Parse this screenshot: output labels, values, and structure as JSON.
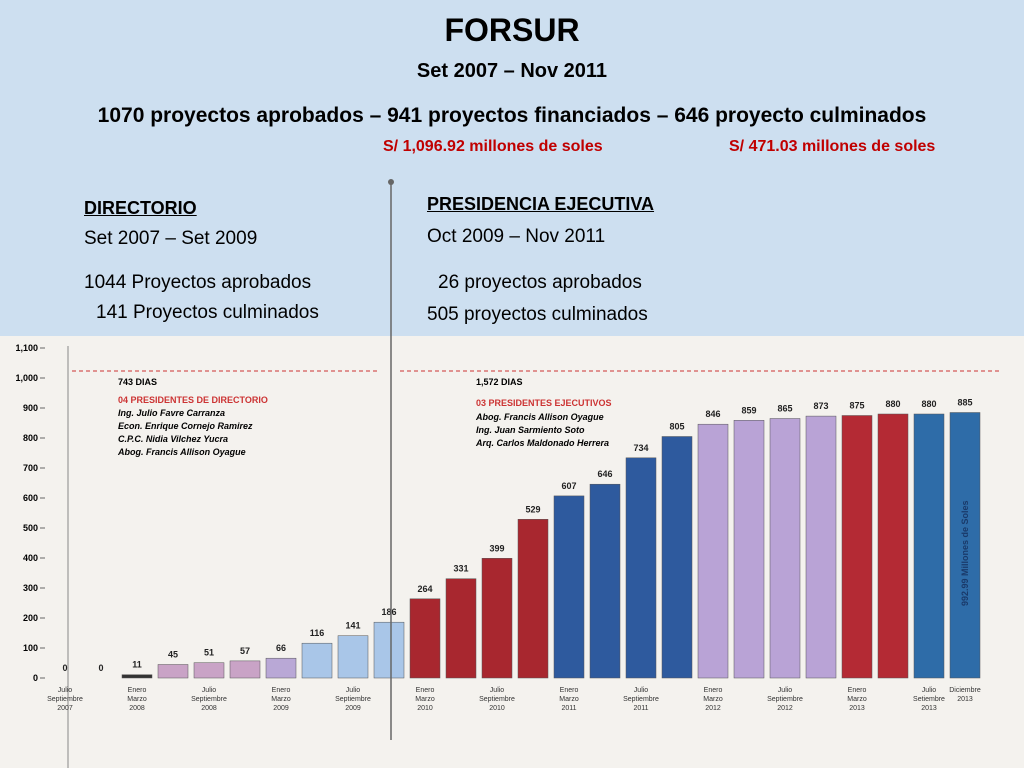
{
  "slide": {
    "title": "FORSUR",
    "period": "Set 2007 – Nov 2011",
    "summary": "1070 proyectos aprobados – 941 proyectos financiados – 646 proyecto culminados",
    "amount1": "S/ 1,096.92 millones de soles",
    "amount2": "S/ 471.03 millones de soles",
    "left": {
      "heading": "DIRECTORIO",
      "period": "Set 2007 – Set 2009",
      "line1": "1044 Proyectos aprobados",
      "line2": "141 Proyectos culminados"
    },
    "right": {
      "heading": "PRESIDENCIA EJECUTIVA",
      "period": "Oct 2009 – Nov 2011",
      "line1": "26 proyectos aprobados",
      "line2": "505 proyectos culminados"
    }
  },
  "chart_data": {
    "type": "bar",
    "categories": [
      "Julio\nSeptiembre\n2007",
      null,
      "Enero\nMarzo\n2008",
      null,
      "Julio\nSeptiembre\n2008",
      null,
      "Enero\nMarzo\n2009",
      null,
      "Julio\nSeptiembre\n2009",
      null,
      "Enero\nMarzo\n2010",
      null,
      "Julio\nSeptiembre\n2010",
      null,
      "Enero\nMarzo\n2011",
      null,
      "Julio\nSeptiembre\n2011",
      null,
      "Enero\nMarzo\n2012",
      null,
      "Julio\nSeptiembre\n2012",
      null,
      "Enero\nMarzo\n2013",
      null,
      "Julio\nSetiembre\n2013",
      "Diciembre\n2013"
    ],
    "values": [
      0,
      0,
      11,
      45,
      51,
      57,
      66,
      116,
      141,
      186,
      264,
      331,
      399,
      529,
      607,
      646,
      734,
      805,
      846,
      859,
      865,
      873,
      875,
      880,
      880,
      885
    ],
    "colors": [
      "#888",
      "#888",
      "#333",
      "#c9a3c6",
      "#c9a3c6",
      "#c9a3c6",
      "#b9a8d6",
      "#a9c6e8",
      "#a9c6e8",
      "#a9c6e8",
      "#a8272f",
      "#a8272f",
      "#a8272f",
      "#a8272f",
      "#2e5a9e",
      "#2e5a9e",
      "#2e5a9e",
      "#2e5a9e",
      "#b9a3d6",
      "#b9a3d6",
      "#b9a3d6",
      "#b9a3d6",
      "#b42a34",
      "#b42a34",
      "#2e6ca8",
      "#2e6ca8"
    ],
    "ylim": [
      0,
      1100
    ],
    "yticks": [
      0,
      100,
      200,
      300,
      400,
      500,
      600,
      700,
      800,
      900,
      {
        "value": 1000,
        "label": "1,000"
      },
      {
        "value": 1100,
        "label": "1,100"
      }
    ],
    "annotations": {
      "days1": "743 DIAS",
      "group1": "04 PRESIDENTES DE DIRECTORIO",
      "names1": [
        "Ing. Julio Favre Carranza",
        "Econ. Enrique Cornejo Ramirez",
        "C.P.C. Nidia Vilchez Yucra",
        "Abog. Francis Allison Oyague"
      ],
      "days2": "1,572 DIAS",
      "group2": "03 PRESIDENTES EJECUTIVOS",
      "names2": [
        "Abog. Francis Allison Oyague",
        "Ing. Juan Sarmiento Soto",
        "Arq. Carlos Maldonado Herrera"
      ],
      "total": "992.99 Millones de Soles"
    }
  }
}
